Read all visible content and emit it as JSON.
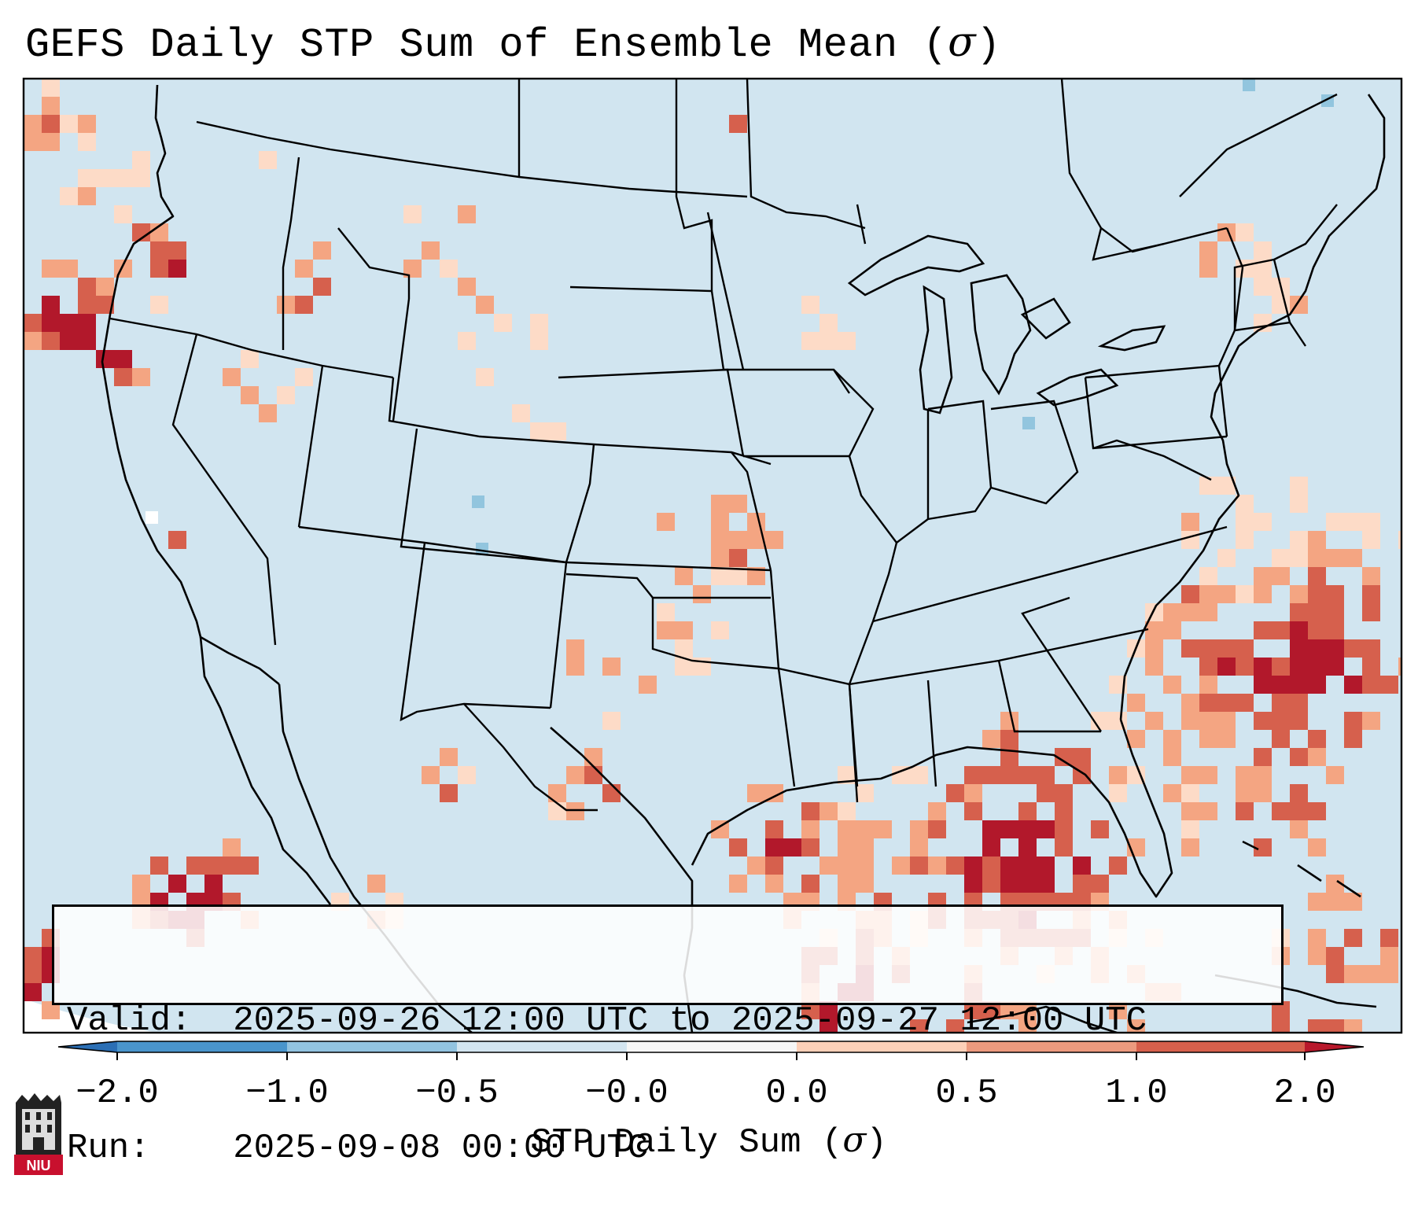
{
  "title": {
    "text": "GEFS Daily STP Sum of Ensemble Mean (",
    "symbol": "σ",
    "close": ")"
  },
  "info": {
    "valid_label": "Valid:",
    "valid_value": "2025-09-26 12:00 UTC to 2025-09-27 12:00 UTC",
    "run_label": "Run:",
    "run_value": "2025-09-08 00:00 UTC"
  },
  "colorbar": {
    "label_text": "STP Daily Sum (",
    "label_symbol": "σ",
    "label_close": ")",
    "ticks": [
      "−2.0",
      "−1.0",
      "−0.5",
      "−0.0",
      "0.0",
      "0.5",
      "1.0",
      "2.0"
    ],
    "colors": [
      "#2b6fb5",
      "#4a95cc",
      "#92c3e0",
      "#d3e5f0",
      "#f6f6f6",
      "#fdd0b8",
      "#ec9a7e",
      "#d6604c",
      "#b8182b"
    ]
  },
  "logo": {
    "text": "NIU"
  },
  "colors": {
    "map_background": "#d1e5f0",
    "map_bg_outside": "#ffffff",
    "level_light": "#fddbc7",
    "level_mid": "#f4a582",
    "level_high": "#d6604d",
    "level_top": "#b2182b",
    "blue": "#92c5de",
    "line": "#000000"
  },
  "chart_data": {
    "type": "heatmap",
    "variable": "STP Daily Sum (σ)",
    "bins": [
      {
        "range": "< -2.0",
        "color": "#2b6fb5"
      },
      {
        "range": "-2.0 to -1.0",
        "color": "#4a95cc"
      },
      {
        "range": "-1.0 to -0.5",
        "color": "#92c3e0"
      },
      {
        "range": "-0.5 to -0.0",
        "color": "#d3e5f0"
      },
      {
        "range": "-0.0 to 0.0",
        "color": "#f6f6f6"
      },
      {
        "range": "0.0 to 0.5",
        "color": "#fdd0b8"
      },
      {
        "range": "0.5 to 1.0",
        "color": "#ec9a7e"
      },
      {
        "range": "1.0 to 2.0",
        "color": "#d6604c"
      },
      {
        "range": "> 2.0",
        "color": "#b8182b"
      }
    ]
  }
}
